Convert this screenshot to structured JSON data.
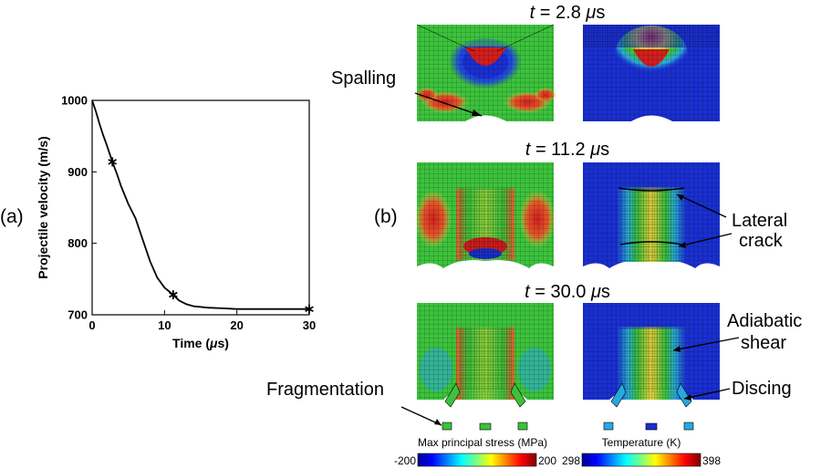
{
  "panel_labels": {
    "a": "(a)",
    "b": "(b)"
  },
  "chart_data": {
    "type": "line",
    "xlabel_pre": "Time (",
    "xlabel_mu": "μ",
    "xlabel_post": "s)",
    "ylabel": "Projectile velocity (m/s)",
    "xlim": [
      0,
      30
    ],
    "ylim": [
      700,
      1000
    ],
    "xticks": [
      "0",
      "10",
      "20",
      "30"
    ],
    "yticks": [
      "700",
      "800",
      "900",
      "1000"
    ],
    "grid": false,
    "series": [
      {
        "x": [
          0,
          0.5,
          1,
          1.5,
          2,
          2.8,
          3.5,
          4,
          5,
          6,
          7,
          8,
          9,
          10,
          11.2,
          12,
          13,
          14,
          16,
          18,
          20,
          24,
          28,
          30
        ],
        "y": [
          1000,
          985,
          968,
          952,
          938,
          914,
          895,
          880,
          855,
          835,
          805,
          775,
          752,
          738,
          728,
          720,
          715,
          712,
          710,
          709,
          708,
          708,
          708,
          708
        ]
      }
    ],
    "markers": [
      {
        "x": 2.8,
        "y": 914
      },
      {
        "x": 11.2,
        "y": 728
      },
      {
        "x": 30,
        "y": 708
      }
    ]
  },
  "snapshots": [
    {
      "t_prefix": "t",
      "t_value": " = 2.8 ",
      "t_unit_mu": "μ",
      "t_unit_s": "s"
    },
    {
      "t_prefix": "t",
      "t_value": " = 11.2 ",
      "t_unit_mu": "μ",
      "t_unit_s": "s"
    },
    {
      "t_prefix": "t",
      "t_value": " = 30.0 ",
      "t_unit_mu": "μ",
      "t_unit_s": "s"
    }
  ],
  "annotations": {
    "spalling": "Spalling",
    "lateral_crack_1": "Lateral",
    "lateral_crack_2": "crack",
    "adiabatic_shear_1": "Adiabatic",
    "adiabatic_shear_2": "shear",
    "discing": "Discing",
    "fragmentation": "Fragmentation"
  },
  "colorbars": {
    "stress": {
      "label": "Max principal stress (MPa)",
      "min": "-200",
      "max": "200"
    },
    "temperature": {
      "label": "Temperature (K)",
      "min": "298",
      "max": "398"
    }
  },
  "colors": {
    "line": "#000000",
    "jet_blue": "#1a2fd0",
    "jet_green": "#3cc23c",
    "jet_red": "#d21e1e",
    "jet_yellow": "#e6d23c"
  }
}
